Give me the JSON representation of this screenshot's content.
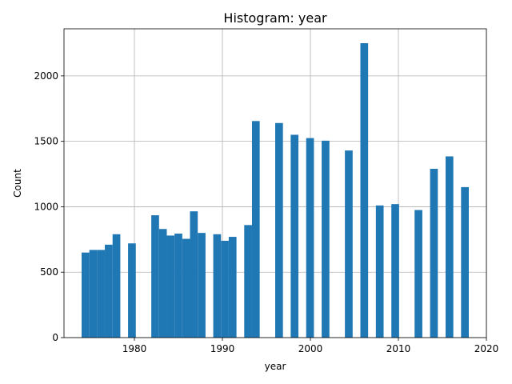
{
  "chart_data": {
    "type": "bar",
    "title": "Histogram: year",
    "xlabel": "year",
    "ylabel": "Count",
    "xlim": [
      1972.0,
      2020.0
    ],
    "ylim": [
      0,
      2360
    ],
    "xticks": [
      1980,
      1990,
      2000,
      2010,
      2020
    ],
    "yticks": [
      0,
      500,
      1000,
      1500,
      2000
    ],
    "grid": true,
    "bar_color": "#1f77b4",
    "bin_width": 0.88,
    "bins": [
      {
        "start": 1974.0,
        "value": 650
      },
      {
        "start": 1974.88,
        "value": 670
      },
      {
        "start": 1975.76,
        "value": 670
      },
      {
        "start": 1976.64,
        "value": 710
      },
      {
        "start": 1977.52,
        "value": 790
      },
      {
        "start": 1979.28,
        "value": 720
      },
      {
        "start": 1981.92,
        "value": 935
      },
      {
        "start": 1982.8,
        "value": 830
      },
      {
        "start": 1983.68,
        "value": 780
      },
      {
        "start": 1984.56,
        "value": 795
      },
      {
        "start": 1985.44,
        "value": 755
      },
      {
        "start": 1986.32,
        "value": 965
      },
      {
        "start": 1987.2,
        "value": 800
      },
      {
        "start": 1988.96,
        "value": 790
      },
      {
        "start": 1989.84,
        "value": 740
      },
      {
        "start": 1990.72,
        "value": 770
      },
      {
        "start": 1992.48,
        "value": 860
      },
      {
        "start": 1993.36,
        "value": 1655
      },
      {
        "start": 1996.0,
        "value": 1640
      },
      {
        "start": 1997.76,
        "value": 1550
      },
      {
        "start": 1999.52,
        "value": 1525
      },
      {
        "start": 2001.28,
        "value": 1505
      },
      {
        "start": 2003.92,
        "value": 1430
      },
      {
        "start": 2005.68,
        "value": 2250
      },
      {
        "start": 2007.44,
        "value": 1010
      },
      {
        "start": 2009.2,
        "value": 1020
      },
      {
        "start": 2011.84,
        "value": 975
      },
      {
        "start": 2013.6,
        "value": 1290
      },
      {
        "start": 2015.36,
        "value": 1385
      },
      {
        "start": 2017.12,
        "value": 1150
      }
    ]
  }
}
